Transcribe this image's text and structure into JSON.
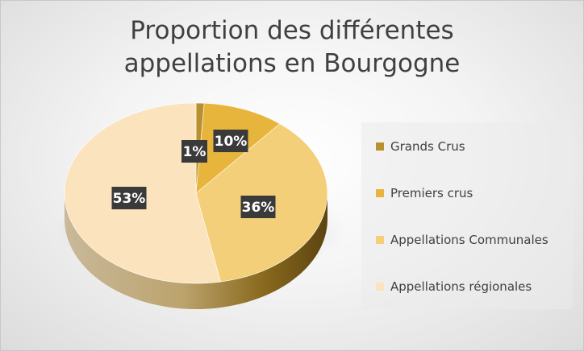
{
  "chart_data": {
    "type": "pie",
    "title_lines": [
      "Proportion des différentes",
      "appellations en Bourgogne"
    ],
    "slices": [
      {
        "name": "Grands Crus",
        "value": 1,
        "label": "1%",
        "color": "#b8912e"
      },
      {
        "name": "Premiers crus",
        "value": 10,
        "label": "10%",
        "color": "#e8b53c"
      },
      {
        "name": "Appellations Communales",
        "value": 36,
        "label": "36%",
        "color": "#f4cf79"
      },
      {
        "name": "Appellations régionales",
        "value": 53,
        "label": "53%",
        "color": "#fae3bd"
      }
    ],
    "legend_position": "right"
  }
}
